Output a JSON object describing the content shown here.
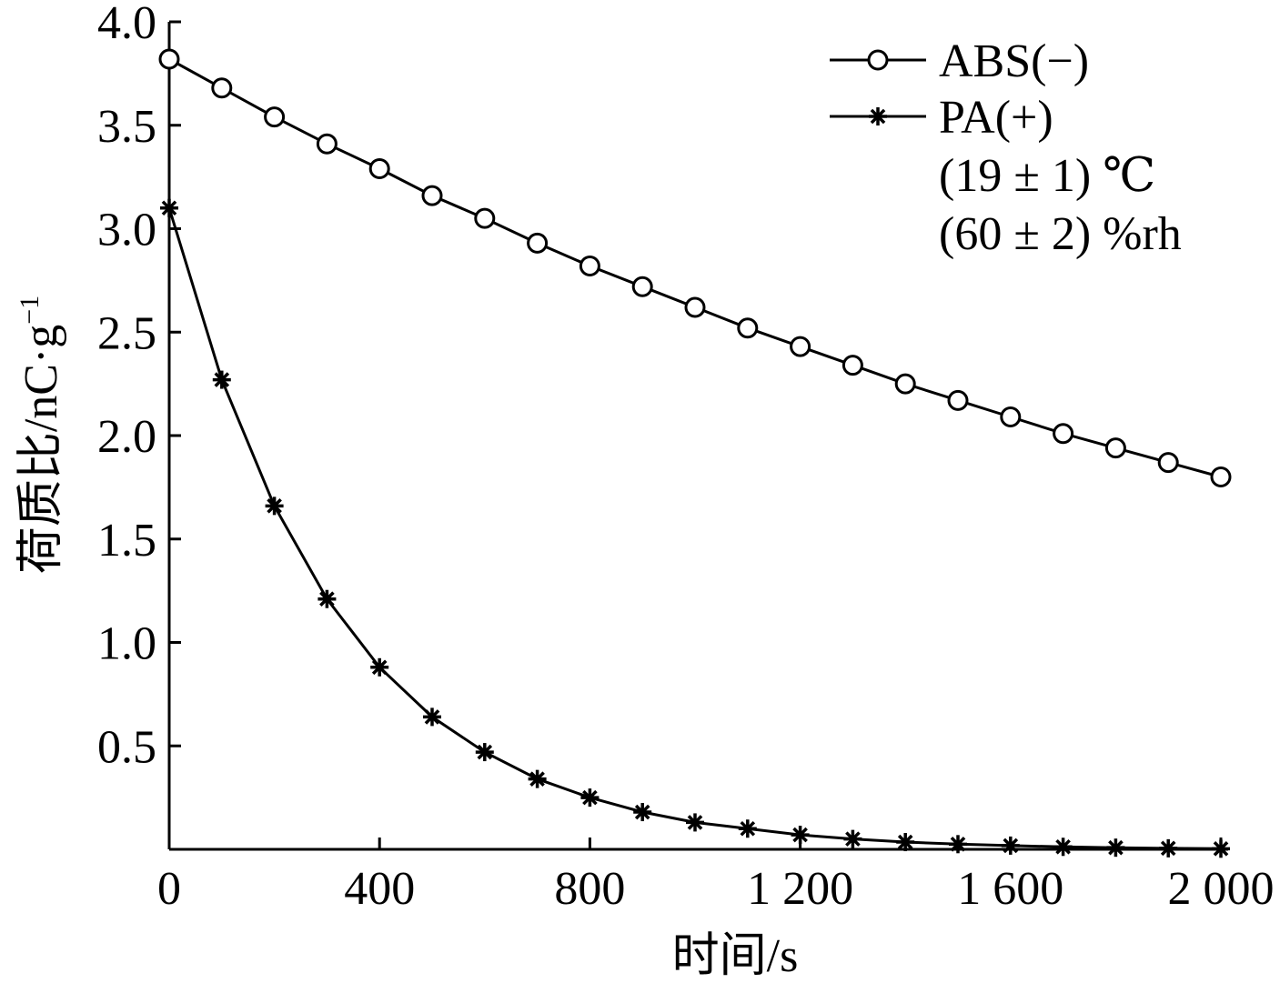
{
  "chart_data": {
    "type": "line",
    "xlabel": "时间/s",
    "ylabel": "荷质比/nC·g",
    "ylabel_superscript": "−1",
    "xlim": [
      0,
      2000
    ],
    "ylim": [
      0,
      4.0
    ],
    "x_ticks": [
      0,
      400,
      800,
      1200,
      1600,
      2000
    ],
    "x_tick_labels": [
      "0",
      "400",
      "800",
      "1 200",
      "1 600",
      "2 000"
    ],
    "y_ticks": [
      0.5,
      1.0,
      1.5,
      2.0,
      2.5,
      3.0,
      3.5,
      4.0
    ],
    "y_tick_labels": [
      "0.5",
      "1.0",
      "1.5",
      "2.0",
      "2.5",
      "3.0",
      "3.5",
      "4.0"
    ],
    "grid": false,
    "legend_position": "top-right",
    "x": [
      0,
      100,
      200,
      300,
      400,
      500,
      600,
      700,
      800,
      900,
      1000,
      1100,
      1200,
      1300,
      1400,
      1500,
      1600,
      1700,
      1800,
      1900,
      2000
    ],
    "series": [
      {
        "name": "ABS(−)",
        "marker": "circle",
        "values": [
          3.82,
          3.68,
          3.54,
          3.41,
          3.29,
          3.16,
          3.05,
          2.93,
          2.82,
          2.72,
          2.62,
          2.52,
          2.43,
          2.34,
          2.25,
          2.17,
          2.09,
          2.01,
          1.94,
          1.87,
          1.8
        ]
      },
      {
        "name": "PA(+)",
        "marker": "asterisk",
        "values": [
          3.1,
          2.27,
          1.66,
          1.21,
          0.88,
          0.64,
          0.47,
          0.34,
          0.25,
          0.18,
          0.13,
          0.1,
          0.07,
          0.05,
          0.035,
          0.025,
          0.018,
          0.012,
          0.008,
          0.005,
          0.003
        ]
      }
    ],
    "annotations": [
      "(19 ± 1) ℃",
      "(60 ± 2) %rh"
    ]
  }
}
